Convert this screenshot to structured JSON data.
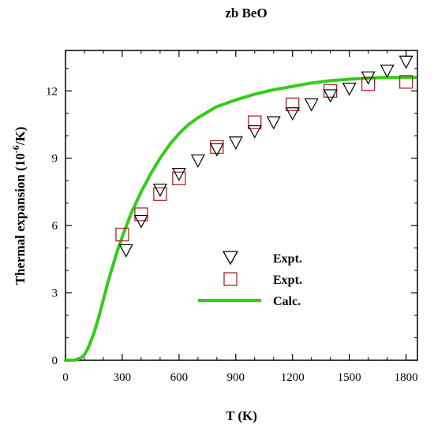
{
  "chart_data": {
    "type": "scatter",
    "title": "zb BeO",
    "xlabel": "T (K)",
    "ylabel_main": "Thermal expansion (10",
    "ylabel_sup": "-6",
    "ylabel_tail": "/K)",
    "xlim": [
      0,
      1860
    ],
    "ylim": [
      0,
      13.8
    ],
    "xticks": [
      0,
      300,
      600,
      900,
      1200,
      1500,
      1800
    ],
    "yticks": [
      0,
      3,
      6,
      9,
      12
    ],
    "grid": false,
    "legend_position": "center-right",
    "colors": {
      "expt_triangle": "#000000",
      "expt_square": "#b22222",
      "calc": "#33cc1a"
    },
    "series": [
      {
        "name": "Expt.",
        "marker": "triangle-down",
        "x": [
          320,
          400,
          500,
          600,
          700,
          800,
          900,
          1000,
          1100,
          1200,
          1300,
          1400,
          1500,
          1600,
          1700,
          1800
        ],
        "y": [
          4.9,
          6.2,
          7.6,
          8.3,
          8.9,
          9.4,
          9.7,
          10.2,
          10.6,
          11.0,
          11.4,
          11.8,
          12.1,
          12.6,
          12.9,
          13.3
        ]
      },
      {
        "name": "Expt.",
        "marker": "square",
        "x": [
          300,
          400,
          500,
          600,
          800,
          1000,
          1200,
          1400,
          1600,
          1800
        ],
        "y": [
          5.6,
          6.5,
          7.4,
          8.1,
          9.5,
          10.6,
          11.4,
          12.0,
          12.3,
          12.4
        ]
      },
      {
        "name": "Calc.",
        "marker": "line",
        "x": [
          0,
          50,
          80,
          100,
          120,
          150,
          175,
          200,
          225,
          250,
          275,
          300,
          350,
          400,
          450,
          500,
          550,
          600,
          650,
          700,
          800,
          900,
          1000,
          1100,
          1200,
          1300,
          1400,
          1500,
          1600,
          1700,
          1850
        ],
        "y": [
          0,
          0.01,
          0.1,
          0.25,
          0.55,
          1.2,
          1.9,
          2.7,
          3.5,
          4.2,
          4.9,
          5.5,
          6.6,
          7.5,
          8.3,
          9.0,
          9.6,
          10.1,
          10.5,
          10.8,
          11.3,
          11.6,
          11.85,
          12.05,
          12.2,
          12.35,
          12.45,
          12.52,
          12.57,
          12.6,
          12.6
        ]
      }
    ]
  }
}
